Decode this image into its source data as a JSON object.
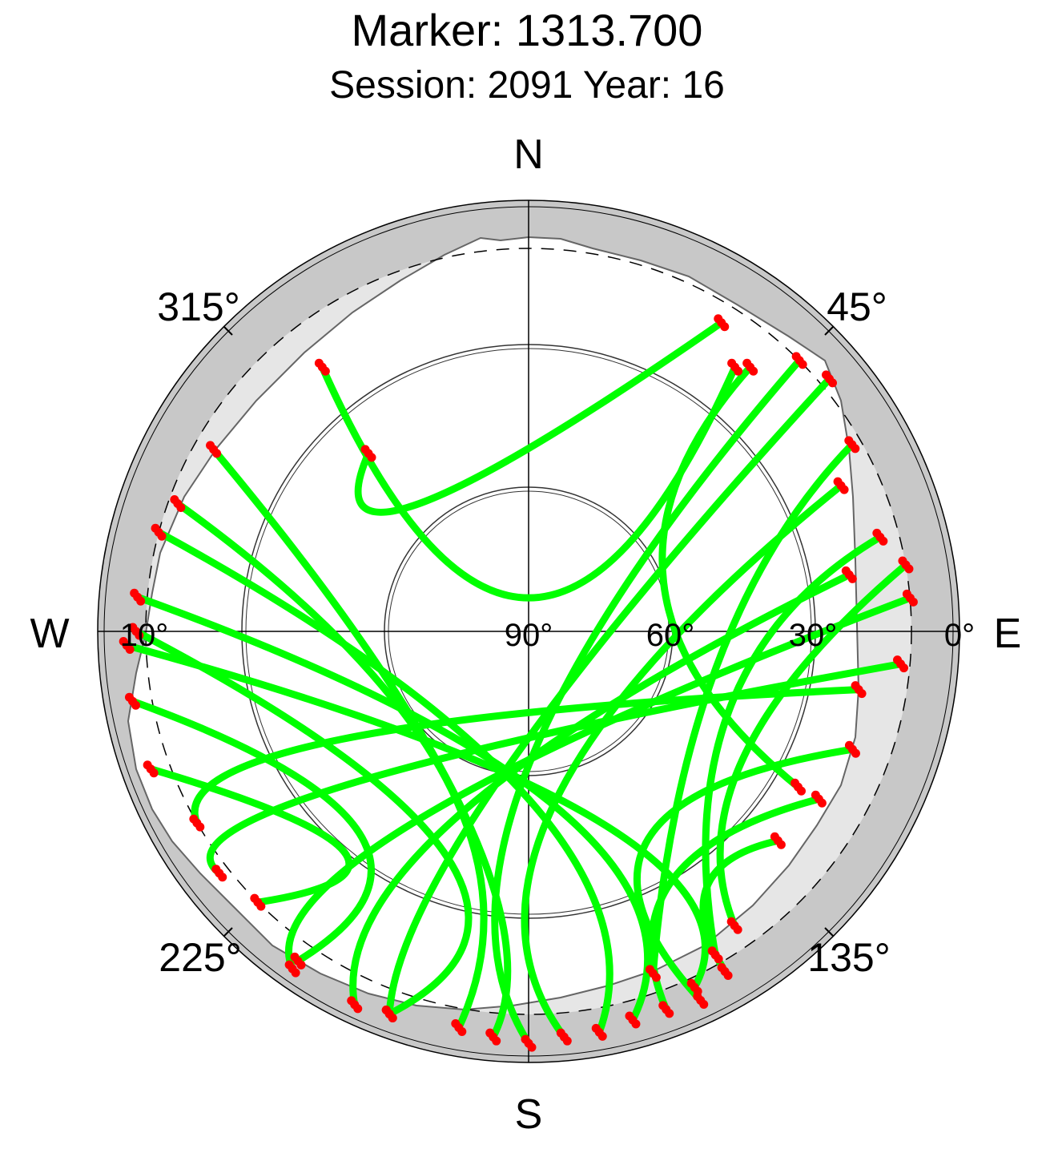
{
  "title": "Marker: 1313.700",
  "subtitle": "Session: 2091 Year: 16",
  "compass": {
    "north": "N",
    "south": "S",
    "east": "E",
    "west": "W"
  },
  "azimuth_labels": [
    "45°",
    "135°",
    "225°",
    "315°"
  ],
  "elevation_labels": [
    "0°",
    "10°",
    "30°",
    "60°",
    "90°"
  ],
  "colors": {
    "outer_ring": "#c8c8c8",
    "mask": "#e6e6e6",
    "track": "#00ff00",
    "flagged": "#ff0000",
    "dashed_circle": "#000000"
  },
  "chart_data": {
    "type": "scatter",
    "projection": "polar skyplot (azimuth, elevation)",
    "title": "Marker: 1313.700",
    "subtitle": "Session: 2091 Year: 16",
    "azimuth_ticks": [
      45,
      135,
      225,
      315
    ],
    "elevation_ticks": [
      0,
      10,
      30,
      60,
      90
    ],
    "dashed_elevation_cutoff": 10,
    "description_of_series": [
      {
        "color": "green",
        "meaning": "satellite tracks"
      },
      {
        "color": "red",
        "meaning": "points at track ends / flagged observations"
      }
    ],
    "tracks": [
      {
        "start": [
          38,
          20
        ],
        "mid": [
          0,
          83
        ],
        "end": [
          322,
          20
        ]
      },
      {
        "start": [
          32,
          14
        ],
        "mid": [
          320,
          55
        ],
        "end": [
          318,
          40
        ]
      },
      {
        "start": [
          40,
          18
        ],
        "mid": [
          70,
          60
        ],
        "end": [
          120,
          25
        ]
      },
      {
        "start": [
          60,
          12
        ],
        "mid": [
          100,
          50
        ],
        "end": [
          160,
          14
        ]
      },
      {
        "start": [
          75,
          14
        ],
        "mid": [
          110,
          45
        ],
        "end": [
          150,
          12
        ]
      },
      {
        "start": [
          80,
          10
        ],
        "mid": [
          120,
          38
        ],
        "end": [
          145,
          15
        ]
      },
      {
        "start": [
          300,
          14
        ],
        "mid": [
          200,
          50
        ],
        "end": [
          185,
          5
        ]
      },
      {
        "start": [
          290,
          12
        ],
        "mid": [
          210,
          55
        ],
        "end": [
          190,
          6
        ]
      },
      {
        "start": [
          270,
          8
        ],
        "mid": [
          200,
          40
        ],
        "end": [
          200,
          5
        ]
      },
      {
        "start": [
          260,
          6
        ],
        "mid": [
          220,
          35
        ],
        "end": [
          215,
          6
        ]
      },
      {
        "start": [
          250,
          6
        ],
        "mid": [
          220,
          30
        ],
        "end": [
          225,
          10
        ]
      },
      {
        "start": [
          285,
          10
        ],
        "mid": [
          180,
          55
        ],
        "end": [
          170,
          5
        ]
      },
      {
        "start": [
          275,
          8
        ],
        "mid": [
          170,
          52
        ],
        "end": [
          165,
          6
        ]
      },
      {
        "start": [
          268,
          6
        ],
        "mid": [
          160,
          48
        ],
        "end": [
          155,
          8
        ]
      },
      {
        "start": [
          50,
          8
        ],
        "mid": [
          190,
          60
        ],
        "end": [
          200,
          5
        ]
      },
      {
        "start": [
          45,
          10
        ],
        "mid": [
          180,
          62
        ],
        "end": [
          180,
          4
        ]
      },
      {
        "start": [
          65,
          18
        ],
        "mid": [
          170,
          55
        ],
        "end": [
          175,
          5
        ]
      },
      {
        "start": [
          80,
          22
        ],
        "mid": [
          200,
          50
        ],
        "end": [
          205,
          4
        ]
      },
      {
        "start": [
          85,
          10
        ],
        "mid": [
          210,
          45
        ],
        "end": [
          215,
          4
        ]
      },
      {
        "start": [
          95,
          12
        ],
        "mid": [
          230,
          40
        ],
        "end": [
          232,
          8
        ]
      },
      {
        "start": [
          100,
          20
        ],
        "mid": [
          240,
          45
        ],
        "end": [
          240,
          10
        ]
      },
      {
        "start": [
          110,
          18
        ],
        "mid": [
          150,
          40
        ],
        "end": [
          155,
          5
        ]
      },
      {
        "start": [
          120,
          20
        ],
        "mid": [
          150,
          30
        ],
        "end": [
          160,
          6
        ]
      },
      {
        "start": [
          130,
          22
        ],
        "mid": [
          145,
          25
        ],
        "end": [
          150,
          8
        ]
      }
    ]
  }
}
